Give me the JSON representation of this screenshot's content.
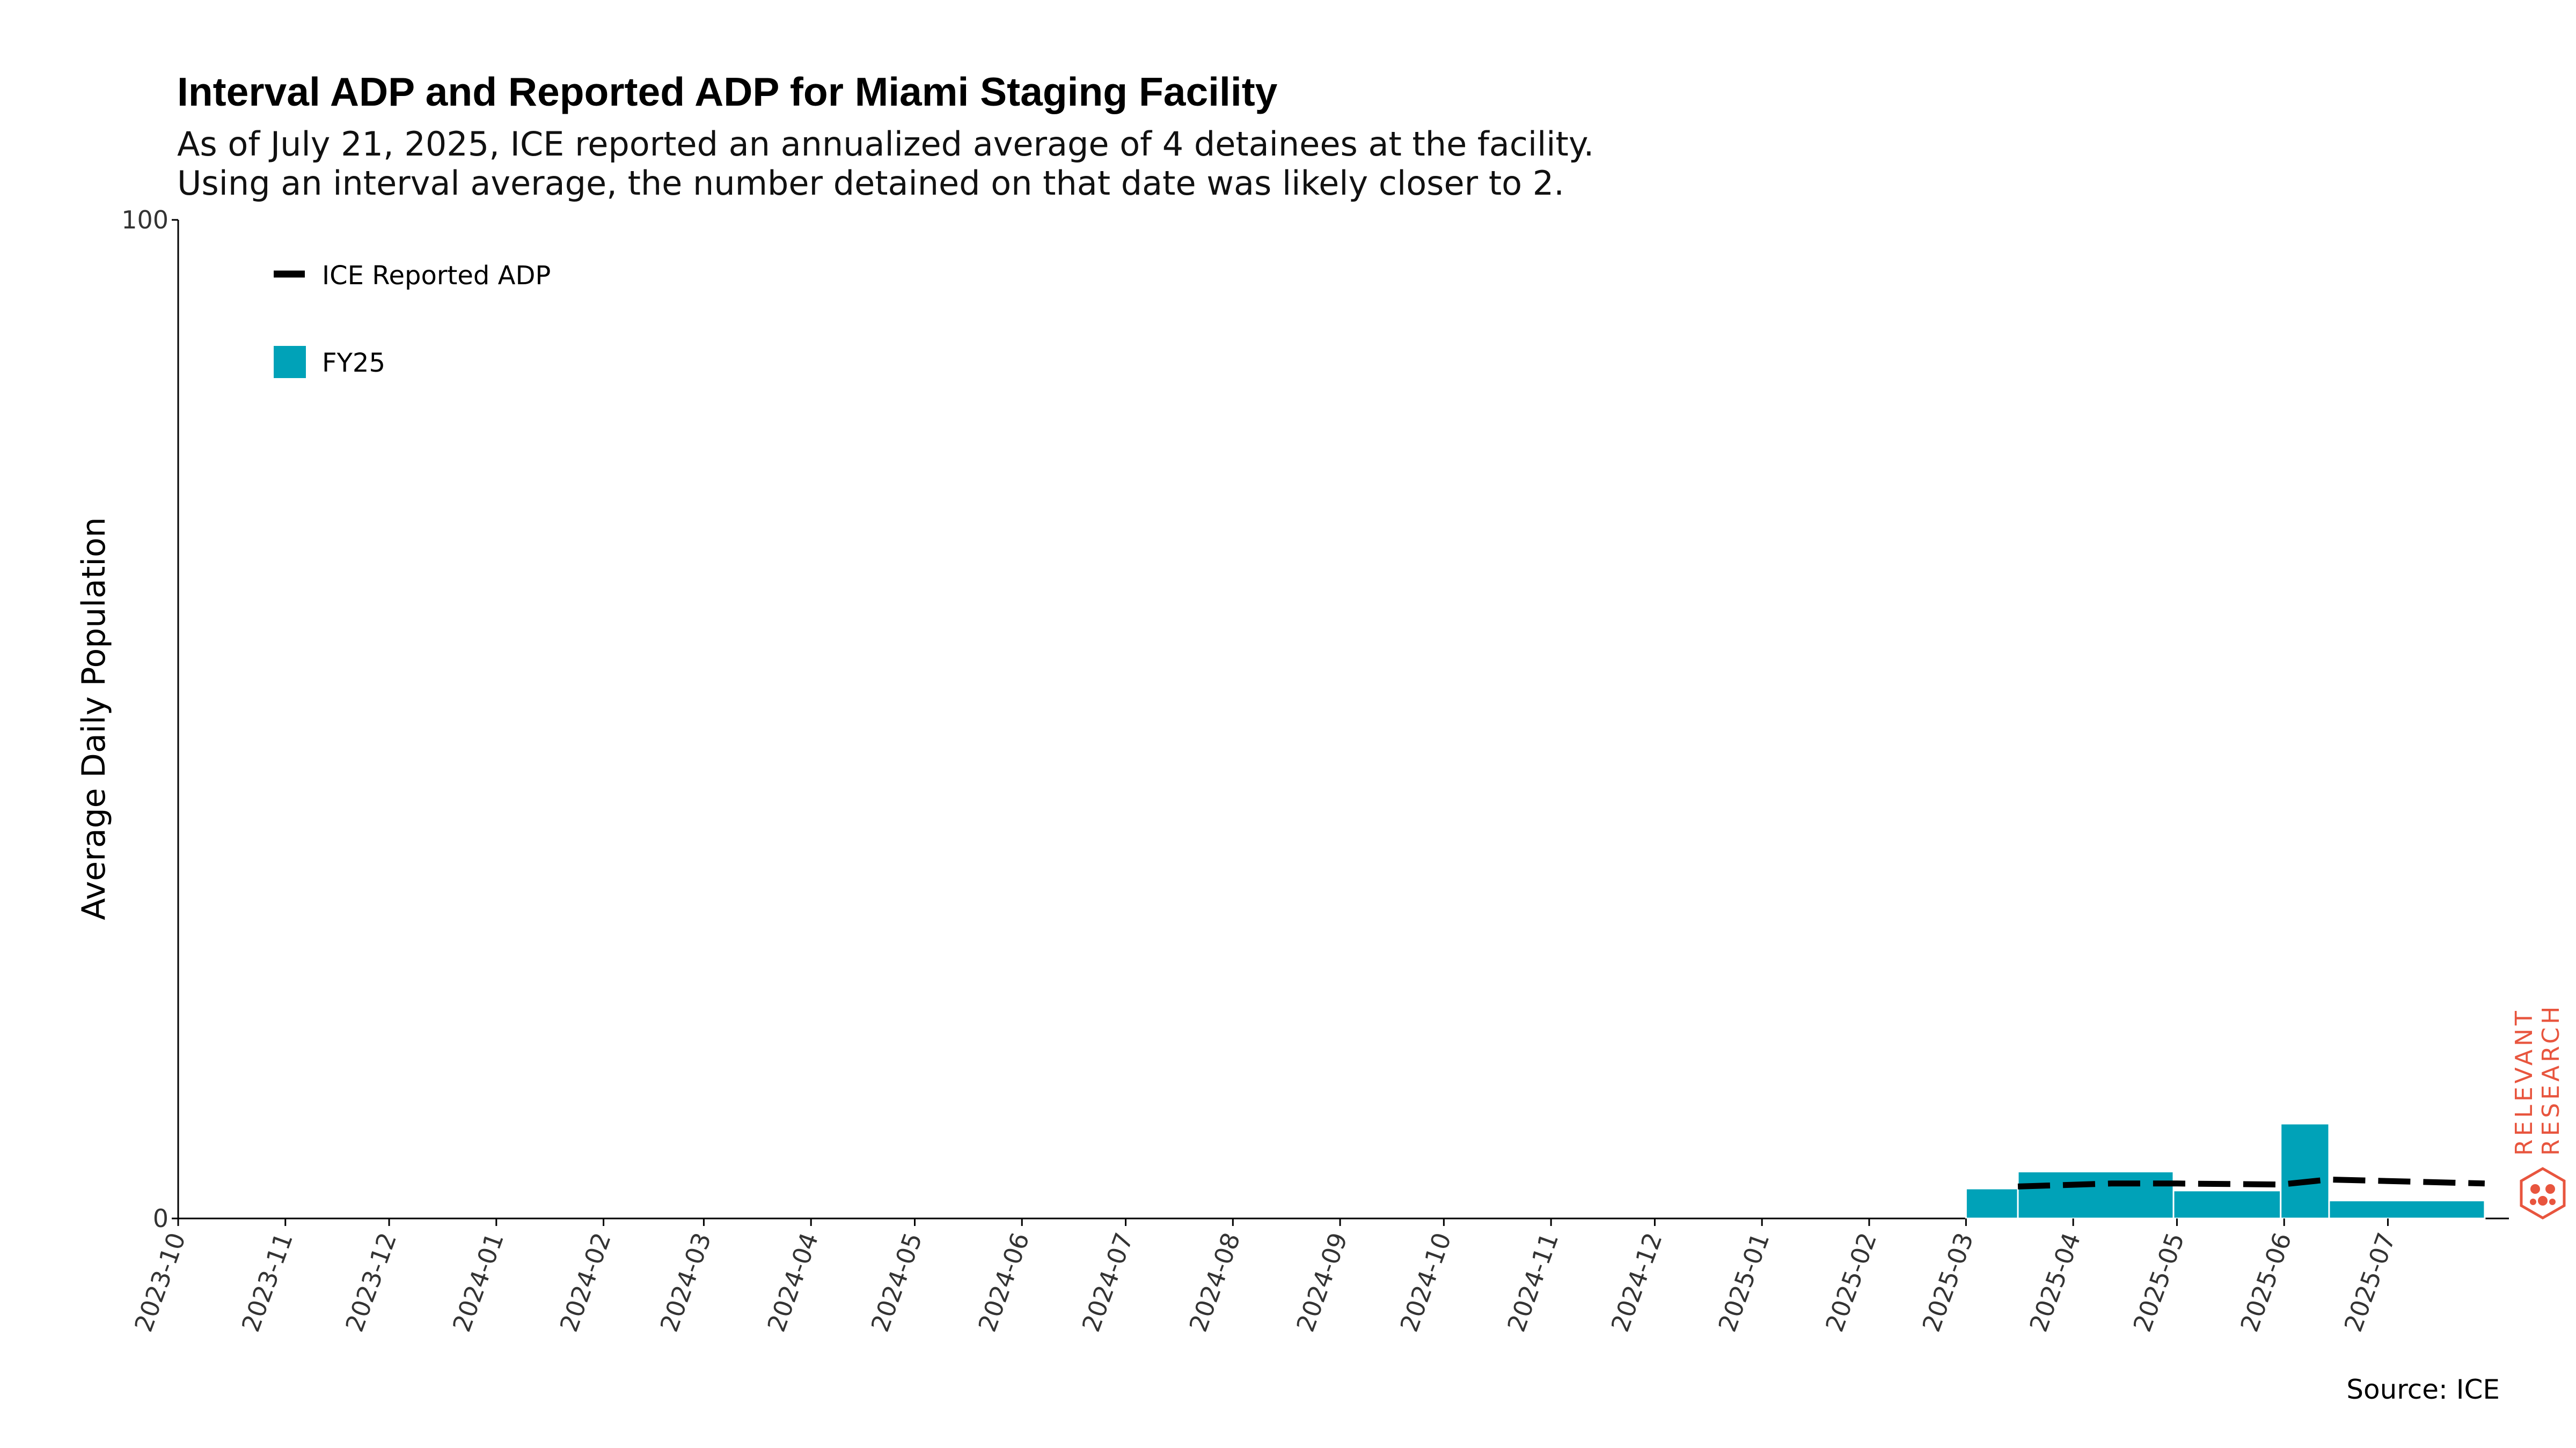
{
  "chart_data": {
    "type": "bar",
    "title": "Interval ADP and Reported ADP for Miami Staging Facility",
    "subtitle_lines": [
      "As of July 21, 2025, ICE reported an annualized average of 4 detainees at the facility.",
      "Using an interval average, the number detained on that date was likely closer to 2."
    ],
    "ylabel": "Average Daily Population",
    "ylim": [
      0,
      100
    ],
    "y_ticks": [
      "0",
      "100"
    ],
    "x_ticks": [
      "2023-10",
      "2023-11",
      "2023-12",
      "2024-01",
      "2024-02",
      "2024-03",
      "2024-04",
      "2024-05",
      "2024-06",
      "2024-07",
      "2024-08",
      "2024-09",
      "2024-10",
      "2024-11",
      "2024-12",
      "2025-01",
      "2025-02",
      "2025-03",
      "2025-04",
      "2025-05",
      "2025-06",
      "2025-07"
    ],
    "x_range": [
      "2023-10-01",
      "2025-08-05"
    ],
    "legend": {
      "placement": "top-left",
      "entries": [
        {
          "label": "ICE Reported ADP",
          "style": "dashed-line"
        },
        {
          "label": "FY25",
          "style": "bar"
        }
      ]
    },
    "bar_series": {
      "name": "FY25",
      "color": "#00A2B8",
      "bars": [
        {
          "start": "2025-03-01",
          "end": "2025-03-16",
          "value": 3.0
        },
        {
          "start": "2025-03-16",
          "end": "2025-04-30",
          "value": 4.7
        },
        {
          "start": "2025-04-30",
          "end": "2025-05-31",
          "value": 2.8
        },
        {
          "start": "2025-05-31",
          "end": "2025-06-14",
          "value": 9.5
        },
        {
          "start": "2025-06-14",
          "end": "2025-07-29",
          "value": 1.8
        }
      ]
    },
    "line_series": {
      "name": "ICE Reported ADP",
      "color": "#000000",
      "style": "dashed",
      "points": [
        {
          "x": "2025-03-16",
          "y": 3.2
        },
        {
          "x": "2025-04-12",
          "y": 3.5
        },
        {
          "x": "2025-05-01",
          "y": 3.5
        },
        {
          "x": "2025-05-31",
          "y": 3.4
        },
        {
          "x": "2025-06-14",
          "y": 3.9
        },
        {
          "x": "2025-07-29",
          "y": 3.5
        }
      ]
    },
    "grid": false
  },
  "source": "Source: ICE",
  "brand": {
    "lines": [
      "RELEVANT",
      "RESEARCH"
    ],
    "color": "#E8553E"
  }
}
